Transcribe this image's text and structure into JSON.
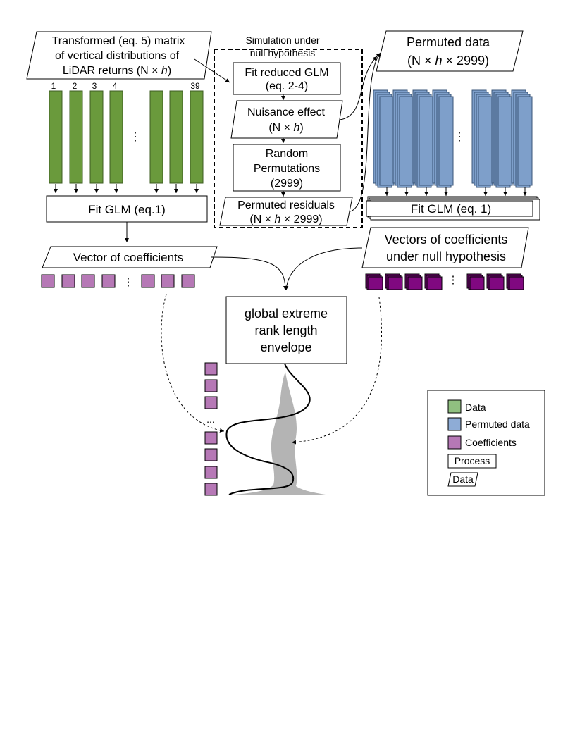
{
  "input_matrix": {
    "line1": "Transformed (eq. 5) matrix",
    "line2": "of vertical distributions of",
    "line3_pre": "LiDAR returns (N × ",
    "line3_h": "h",
    "line3_post": ")"
  },
  "column_numbers": [
    "1",
    "2",
    "3",
    "4",
    "39"
  ],
  "ellipsis": "⋮",
  "fit_glm_left": "Fit GLM (eq.1)",
  "vector_of_coefficients": "Vector of coefficients",
  "simulation": {
    "title_line1": "Simulation under",
    "title_line2": "null hypothesis",
    "fit_reduced_line1": "Fit reduced GLM",
    "fit_reduced_line2": "(eq. 2-4)",
    "nuisance_line1": "Nuisance effect",
    "nuisance_line2_pre": "(N × ",
    "nuisance_line2_h": "h",
    "nuisance_line2_post": ")",
    "random_line1": "Random",
    "random_line2": "Permutations",
    "random_line3": "(2999)",
    "residuals_line1": "Permuted residuals",
    "residuals_line2_pre": "(N × ",
    "residuals_line2_h": "h",
    "residuals_line2_post": " × 2999)"
  },
  "permuted_data": {
    "line1": "Permuted data",
    "line2_pre": "(N × ",
    "line2_h": "h",
    "line2_post": " × 2999)"
  },
  "fit_glm_right": "Fit GLM (eq. 1)",
  "vectors_null": {
    "line1": "Vectors of coefficients",
    "line2": "under null hypothesis"
  },
  "envelope": {
    "line1": "global extreme",
    "line2": "rank length",
    "line3": "envelope"
  },
  "coef_ellipsis": "...",
  "legend": {
    "data": "Data",
    "permuted_data": "Permuted data",
    "coefficients": "Coefficients",
    "process": "Process",
    "data_shape": "Data"
  },
  "colors": {
    "green": "#6a9a3c",
    "blue": "#7e9fca",
    "purple": "#b678b6",
    "dark_purple": "#800880",
    "gray": "#b4b4b4"
  }
}
